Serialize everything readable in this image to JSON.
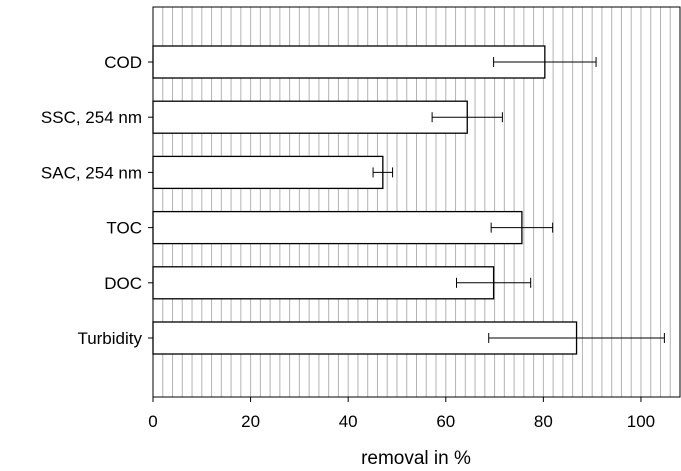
{
  "chart_data": {
    "type": "bar",
    "orientation": "horizontal",
    "xlabel": "removal in %",
    "ylabel": "",
    "xlim": [
      0,
      108
    ],
    "xticks": [
      0,
      20,
      40,
      60,
      80,
      100
    ],
    "grid": "vertical",
    "legend": "none",
    "categories": [
      "COD",
      "SSC, 254 nm",
      "SAC, 254 nm",
      "TOC",
      "DOC",
      "Turbidity"
    ],
    "values": [
      80.3,
      64.4,
      47.1,
      75.6,
      69.8,
      86.8
    ],
    "error": [
      10.5,
      7.2,
      2.0,
      6.3,
      7.6,
      18.0
    ],
    "colors": {
      "bar_fill": "#ffffff",
      "bar_stroke": "#000000",
      "grid": "#b3b3b3"
    }
  }
}
